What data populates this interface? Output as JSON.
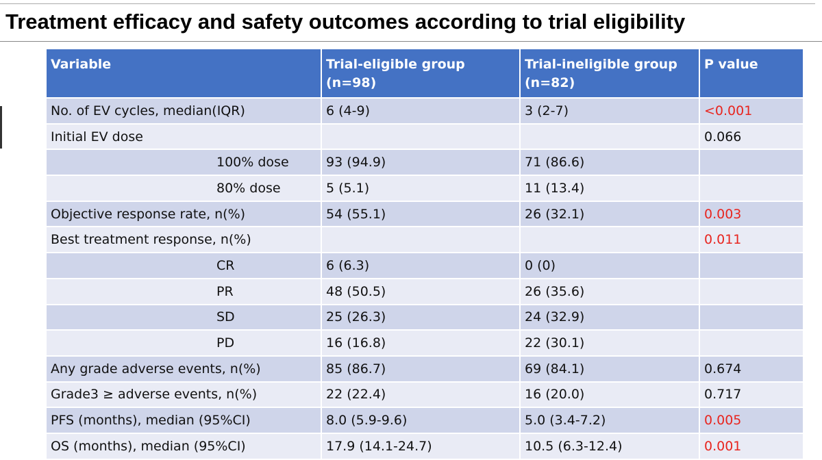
{
  "header": {
    "title": "Treatment efficacy and safety outcomes according to trial eligibility"
  },
  "table": {
    "columns": [
      "Variable",
      "Trial-eligible group (n=98)",
      "Trial-ineligible group (n=82)",
      "P value"
    ],
    "highlight_color": "#e8251f",
    "rows": [
      {
        "cells": [
          "No. of EV cycles, median(IQR)",
          "6 (4-9)",
          "3 (2-7)",
          "<0.001"
        ],
        "sub": false,
        "highlight": true
      },
      {
        "cells": [
          "Initial EV dose",
          null,
          null,
          "0.066"
        ],
        "sub": false,
        "highlight": false
      },
      {
        "cells": [
          "100% dose",
          "93 (94.9)",
          "71 (86.6)",
          null
        ],
        "sub": true,
        "highlight": false
      },
      {
        "cells": [
          "80% dose",
          "5 (5.1)",
          "11 (13.4)",
          null
        ],
        "sub": true,
        "highlight": false
      },
      {
        "cells": [
          "Objective response rate, n(%)",
          "54 (55.1)",
          "26 (32.1)",
          "0.003"
        ],
        "sub": false,
        "highlight": true
      },
      {
        "cells": [
          "Best treatment response, n(%)",
          null,
          null,
          "0.011"
        ],
        "sub": false,
        "highlight": true
      },
      {
        "cells": [
          "CR",
          "6 (6.3)",
          "0 (0)",
          null
        ],
        "sub": true,
        "highlight": false
      },
      {
        "cells": [
          "PR",
          "48 (50.5)",
          "26 (35.6)",
          null
        ],
        "sub": true,
        "highlight": false
      },
      {
        "cells": [
          "SD",
          "25 (26.3)",
          "24 (32.9)",
          null
        ],
        "sub": true,
        "highlight": false
      },
      {
        "cells": [
          "PD",
          "16 (16.8)",
          "22 (30.1)",
          null
        ],
        "sub": true,
        "highlight": false
      },
      {
        "cells": [
          "Any grade adverse events, n(%)",
          "85 (86.7)",
          "69 (84.1)",
          "0.674"
        ],
        "sub": false,
        "highlight": false
      },
      {
        "cells": [
          "Grade3 ≥ adverse events, n(%)",
          "22 (22.4)",
          "16 (20.0)",
          "0.717"
        ],
        "sub": false,
        "highlight": false
      },
      {
        "cells": [
          "PFS (months), median (95%CI)",
          "8.0 (5.9-9.6)",
          "5.0 (3.4-7.2)",
          "0.005"
        ],
        "sub": false,
        "highlight": true
      },
      {
        "cells": [
          "OS (months), median (95%CI)",
          "17.9 (14.1-24.7)",
          "10.5 (6.3-12.4)",
          "0.001"
        ],
        "sub": false,
        "highlight": true
      }
    ]
  }
}
